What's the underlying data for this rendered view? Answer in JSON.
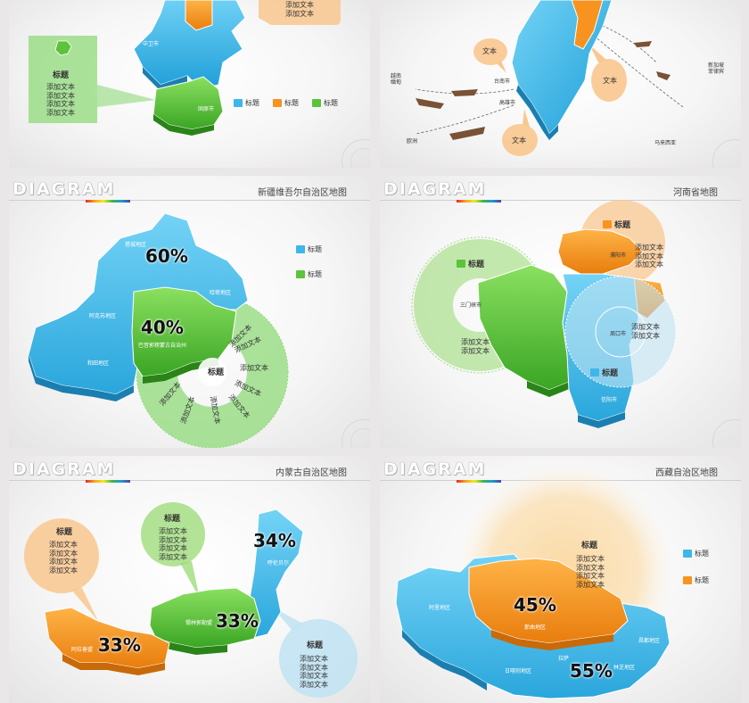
{
  "colors": {
    "blue": "#3fb6ea",
    "orange": "#f7931e",
    "green": "#5cc33a",
    "lightgreen": "#9fdc7c",
    "peach": "#f9c78f",
    "lightblue": "#bfe3f2"
  },
  "common": {
    "title": "标题",
    "text": "添加文本",
    "logo": "DIAGRAM"
  },
  "s1": {
    "callout_title": "标题",
    "callout_lines": [
      "添加文本",
      "添加文本",
      "添加文本",
      "添加文本"
    ],
    "top_lines": [
      "添加文本",
      "添加文本"
    ],
    "legend": [
      "标题",
      "标题",
      "标题"
    ],
    "labels": [
      "中卫市",
      "固原市"
    ]
  },
  "s2": {
    "bubbles": [
      "文本",
      "文本",
      "文本"
    ],
    "places": [
      "越南",
      "缅甸",
      "新加坡",
      "菲律宾",
      "欧洲",
      "马来西亚",
      "台南市",
      "高雄市"
    ]
  },
  "s3": {
    "title": "新疆维吾尔自治区地图",
    "pcts": [
      "60%",
      "40%"
    ],
    "legend": [
      "标题",
      "标题"
    ],
    "ring_title": "标题",
    "ring_texts": [
      "添加文本",
      "添加文本",
      "添加文本",
      "添加文本",
      "添加文本",
      "添加文本",
      "添加文本",
      "添加文本"
    ],
    "labels": [
      "阿克苏地区",
      "和田地区",
      "塔城地区",
      "哈密地区",
      "巴音郭楞蒙古自治州"
    ]
  },
  "s4": {
    "title": "河南省地图",
    "callouts": [
      {
        "title": "标题",
        "lines": [
          "添加文本",
          "添加文本",
          "添加文本"
        ]
      },
      {
        "title": "标题",
        "lines": [
          "添加文本",
          "添加文本"
        ]
      },
      {
        "title": "标题",
        "lines": [
          "添加文本",
          "添加文本"
        ]
      }
    ],
    "labels": [
      "三门峡市",
      "周口市",
      "信阳市",
      "濮阳市"
    ]
  },
  "s5": {
    "title": "内蒙古自治区地图",
    "pcts": [
      "34%",
      "33%",
      "33%"
    ],
    "callouts": [
      {
        "title": "标题",
        "lines": [
          "添加文本",
          "添加文本",
          "添加文本",
          "添加文本"
        ]
      },
      {
        "title": "标题",
        "lines": [
          "添加文本",
          "添加文本",
          "添加文本",
          "添加文本"
        ]
      },
      {
        "title": "标题",
        "lines": [
          "添加文本",
          "添加文本",
          "添加文本",
          "添加文本"
        ]
      }
    ],
    "labels": [
      "呼伦贝尔",
      "锡林郭勒盟",
      "阿拉善盟"
    ]
  },
  "s6": {
    "title": "西藏自治区地图",
    "pcts": [
      "45%",
      "55%"
    ],
    "callout_title": "标题",
    "callout_lines": [
      "添加文本",
      "添加文本",
      "添加文本",
      "添加文本"
    ],
    "legend": [
      "标题",
      "标题"
    ],
    "labels": [
      "阿里地区",
      "那曲地区",
      "日喀则地区",
      "拉萨",
      "林芝地区",
      "昌都地区"
    ]
  }
}
